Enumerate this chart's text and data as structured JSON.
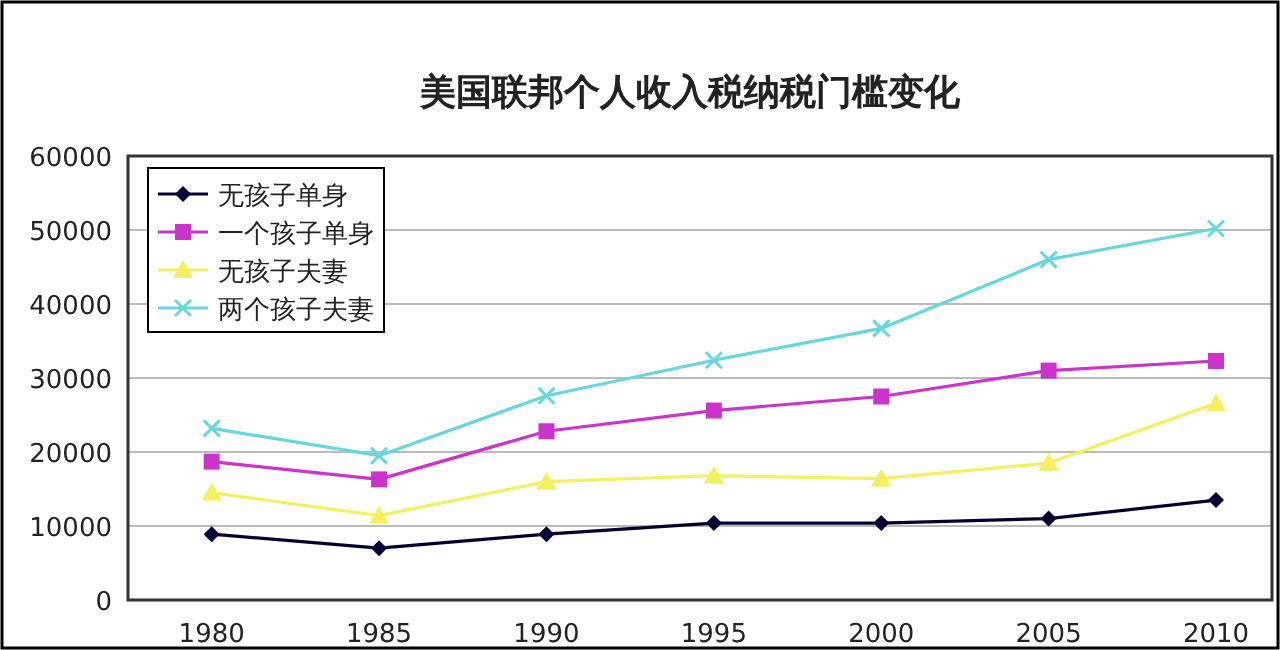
{
  "chart_data": {
    "type": "line",
    "title": "美国联邦个人收入税纳税门槛变化",
    "categories": [
      "1980",
      "1985",
      "1990",
      "1995",
      "2000",
      "2005",
      "2010"
    ],
    "ylim": [
      0,
      60000
    ],
    "yticks": [
      0,
      10000,
      20000,
      30000,
      40000,
      50000,
      60000
    ],
    "grid": "y",
    "legend": "top left",
    "series": [
      {
        "name": "无孩子单身",
        "color": "#000033",
        "marker": "diamond",
        "values": [
          8900,
          7000,
          8900,
          10400,
          10400,
          11000,
          13500
        ]
      },
      {
        "name": "一个孩子单身",
        "color": "#cc33cc",
        "marker": "square",
        "values": [
          18700,
          16300,
          22800,
          25600,
          27500,
          31000,
          32300
        ]
      },
      {
        "name": "无孩子夫妻",
        "color": "#f5f060",
        "marker": "triangle",
        "values": [
          14500,
          11400,
          16000,
          16800,
          16400,
          18500,
          26600
        ]
      },
      {
        "name": "两个孩子夫妻",
        "color": "#66d8dd",
        "marker": "cross",
        "values": [
          23200,
          19500,
          27600,
          32400,
          36700,
          46000,
          50200
        ]
      }
    ]
  }
}
